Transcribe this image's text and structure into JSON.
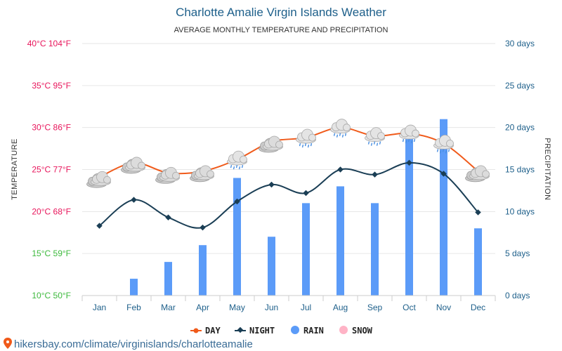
{
  "chart_data": {
    "type": "line+bar",
    "title": "Charlotte Amalie Virgin Islands Weather",
    "subtitle": "AVERAGE MONTHLY TEMPERATURE AND PRECIPITATION",
    "categories": [
      "Jan",
      "Feb",
      "Mar",
      "Apr",
      "May",
      "Jun",
      "Jul",
      "Aug",
      "Sep",
      "Oct",
      "Nov",
      "Dec"
    ],
    "series": [
      {
        "name": "DAY",
        "kind": "line",
        "axis": "left",
        "color": "#f05a1a",
        "values": [
          24.1,
          25.8,
          24.6,
          24.8,
          26.2,
          28.3,
          28.8,
          30.0,
          29.0,
          29.3,
          28.1,
          24.8
        ]
      },
      {
        "name": "NIGHT",
        "kind": "line",
        "axis": "left",
        "color": "#1a3e55",
        "values": [
          18.3,
          21.4,
          19.3,
          18.1,
          21.2,
          23.2,
          22.2,
          25.0,
          24.4,
          25.8,
          24.5,
          19.9
        ]
      },
      {
        "name": "RAIN",
        "kind": "bar",
        "axis": "right",
        "color": "#5b9bf8",
        "values": [
          0,
          2,
          4,
          6,
          14,
          7,
          11,
          13,
          11,
          19,
          21,
          8
        ]
      },
      {
        "name": "SNOW",
        "kind": "bar",
        "axis": "right",
        "color": "#ffb3c6",
        "values": [
          0,
          0,
          0,
          0,
          0,
          0,
          0,
          0,
          0,
          0,
          0,
          0
        ]
      }
    ],
    "weather_icons": [
      "partly-sunny",
      "partly-sunny",
      "partly-sunny",
      "partly-sunny",
      "rain-cloud",
      "partly-sunny",
      "rain-cloud",
      "rain-cloud",
      "rain-cloud",
      "rain-cloud",
      "rain-cloud",
      "partly-sunny"
    ],
    "ylim_left": [
      10,
      40
    ],
    "ylim_right": [
      0,
      30
    ],
    "left_ticks": [
      "10°C 50°F",
      "15°C 59°F",
      "20°C 68°F",
      "25°C 77°F",
      "30°C 86°F",
      "35°C 95°F",
      "40°C 104°F"
    ],
    "left_tick_colors": [
      "#3cb93c",
      "#3cb93c",
      "#e8155b",
      "#e8155b",
      "#e8155b",
      "#e8155b",
      "#e8155b"
    ],
    "right_ticks": [
      "0 days",
      "5 days",
      "10 days",
      "15 days",
      "20 days",
      "25 days",
      "30 days"
    ],
    "ylabel_left": "TEMPERATURE",
    "ylabel_right": "PRECIPITATION",
    "legend_position": "bottom",
    "grid": true
  },
  "source_text": "hikersbay.com/climate/virginislands/charlotteamalie",
  "colors": {
    "title": "#1d5f8a",
    "axis": "#1d5f8a",
    "source_pin": "#f05a1a"
  }
}
